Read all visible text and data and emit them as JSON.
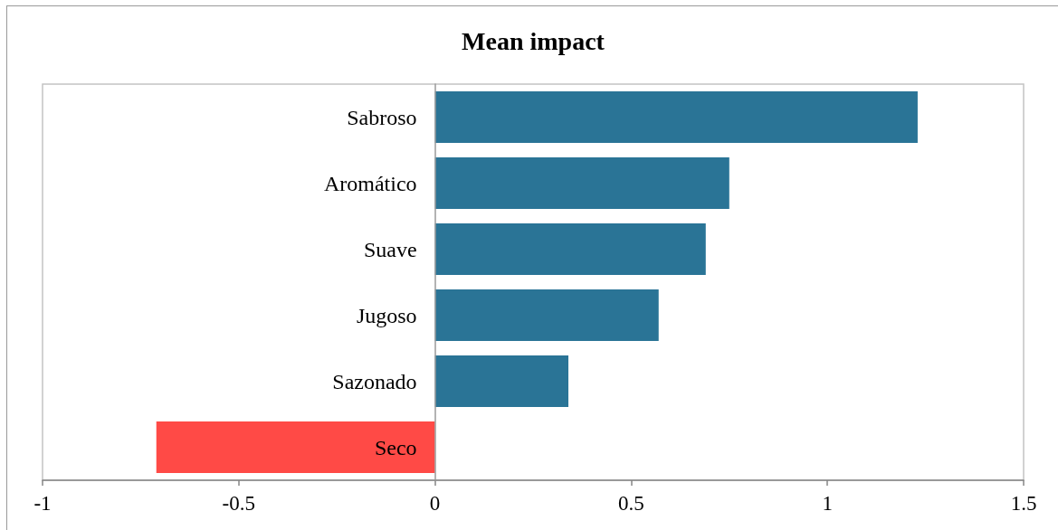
{
  "chart_data": {
    "type": "bar",
    "orientation": "horizontal",
    "title": "Mean impact",
    "categories": [
      "Sabroso",
      "Aromático",
      "Suave",
      "Jugoso",
      "Sazonado",
      "Seco"
    ],
    "values": [
      1.23,
      0.75,
      0.69,
      0.57,
      0.34,
      -0.71
    ],
    "colors": [
      "#2a7496",
      "#2a7496",
      "#2a7496",
      "#2a7496",
      "#2a7496",
      "#ff4a46"
    ],
    "xlim": [
      -1,
      1.5
    ],
    "xticks": [
      -1,
      -0.5,
      0,
      0.5,
      1,
      1.5
    ]
  }
}
